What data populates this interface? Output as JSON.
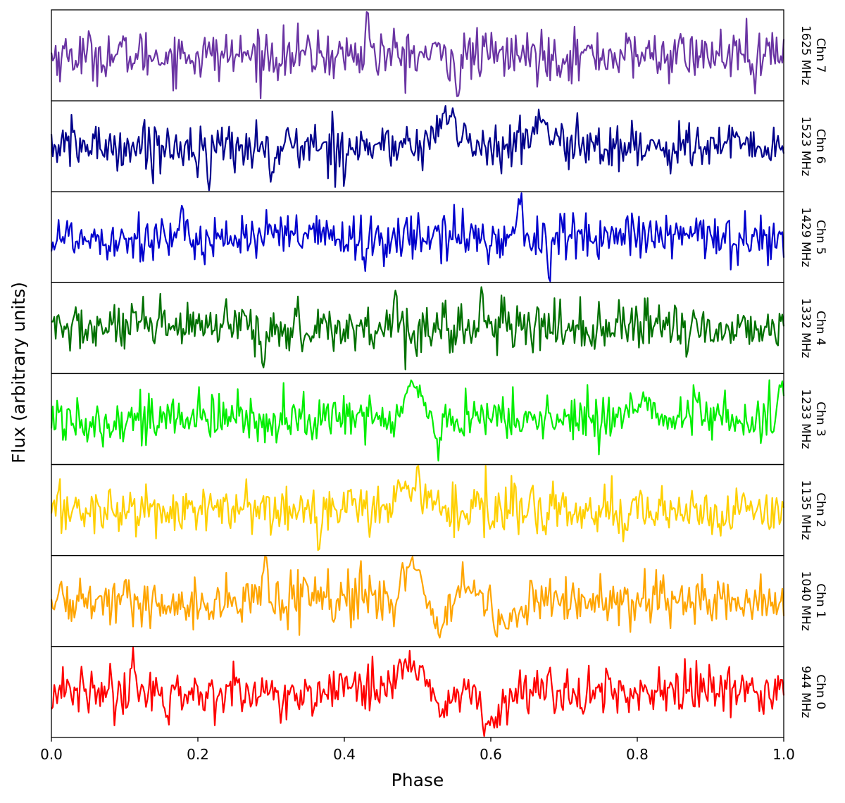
{
  "chart_data": {
    "type": "line",
    "xlabel": "Phase",
    "ylabel": "Flux (arbitrary units)",
    "xlim": [
      0.0,
      1.0
    ],
    "xticks": [
      "0.0",
      "0.2",
      "0.4",
      "0.6",
      "0.8",
      "1.0"
    ],
    "yticks_shown": false,
    "grid": false,
    "legend": "none",
    "series": [
      {
        "name": "Chn 7",
        "freq": "1625 MHz",
        "color": "#6a34a3",
        "ylim": [
          -3.5,
          3.5
        ],
        "features": [
          {
            "x": 0.432,
            "y": 3.2
          },
          {
            "x": 0.555,
            "y": -3.3
          },
          {
            "x": 0.96,
            "y": -2.8
          }
        ]
      },
      {
        "name": "Chn 6",
        "freq": "1523 MHz",
        "color": "#00008b",
        "ylim": [
          -3.5,
          3.5
        ],
        "features": [
          {
            "x": 0.215,
            "y": -3.3
          },
          {
            "x": 0.3,
            "y": -2.9
          },
          {
            "x": 0.54,
            "y": 2.4
          },
          {
            "x": 0.67,
            "y": 1.8
          }
        ]
      },
      {
        "name": "Chn 5",
        "freq": "1429 MHz",
        "color": "#0000cd",
        "ylim": [
          -3.5,
          3.5
        ],
        "features": [
          {
            "x": 0.64,
            "y": 3.3
          },
          {
            "x": 0.68,
            "y": -3.0
          },
          {
            "x": 0.428,
            "y": -2.9
          }
        ]
      },
      {
        "name": "Chn 4",
        "freq": "1332 MHz",
        "color": "#007000",
        "ylim": [
          -3.5,
          3.5
        ],
        "features": [
          {
            "x": 0.47,
            "y": 3.0
          },
          {
            "x": 0.587,
            "y": 2.9
          },
          {
            "x": 0.29,
            "y": -3.1
          }
        ]
      },
      {
        "name": "Chn 3",
        "freq": "1233 MHz",
        "color": "#00ee00",
        "ylim": [
          -3.5,
          3.5
        ],
        "features": [
          {
            "x": 0.995,
            "y": 2.8
          },
          {
            "x": 0.495,
            "y": 2.6
          },
          {
            "x": 0.527,
            "y": -3.2
          },
          {
            "x": 0.81,
            "y": 1.6
          }
        ]
      },
      {
        "name": "Chn 2",
        "freq": "1135 MHz",
        "color": "#ffd000",
        "ylim": [
          -3.5,
          3.5
        ],
        "features": [
          {
            "x": 0.5,
            "y": 3.1
          },
          {
            "x": 0.48,
            "y": 1.8
          },
          {
            "x": 0.365,
            "y": -3.0
          }
        ]
      },
      {
        "name": "Chn 1",
        "freq": "1040 MHz",
        "color": "#ffa500",
        "ylim": [
          -3.5,
          3.5
        ],
        "features": [
          {
            "x": 0.293,
            "y": 3.2
          },
          {
            "x": 0.49,
            "y": 2.6
          },
          {
            "x": 0.5,
            "y": 1.8
          },
          {
            "x": 0.527,
            "y": -2.0
          },
          {
            "x": 0.57,
            "y": 1.0
          },
          {
            "x": 0.606,
            "y": -3.1
          },
          {
            "x": 0.62,
            "y": -1.5
          }
        ]
      },
      {
        "name": "Chn 0",
        "freq": "944 MHz",
        "color": "#ff0000",
        "ylim": [
          -3.5,
          3.5
        ],
        "features": [
          {
            "x": 0.111,
            "y": 3.3
          },
          {
            "x": 0.16,
            "y": -2.8
          },
          {
            "x": 0.48,
            "y": 2.4
          },
          {
            "x": 0.51,
            "y": 1.6
          },
          {
            "x": 0.53,
            "y": -1.4
          },
          {
            "x": 0.591,
            "y": -3.3
          },
          {
            "x": 0.605,
            "y": -2.0
          }
        ]
      }
    ]
  }
}
